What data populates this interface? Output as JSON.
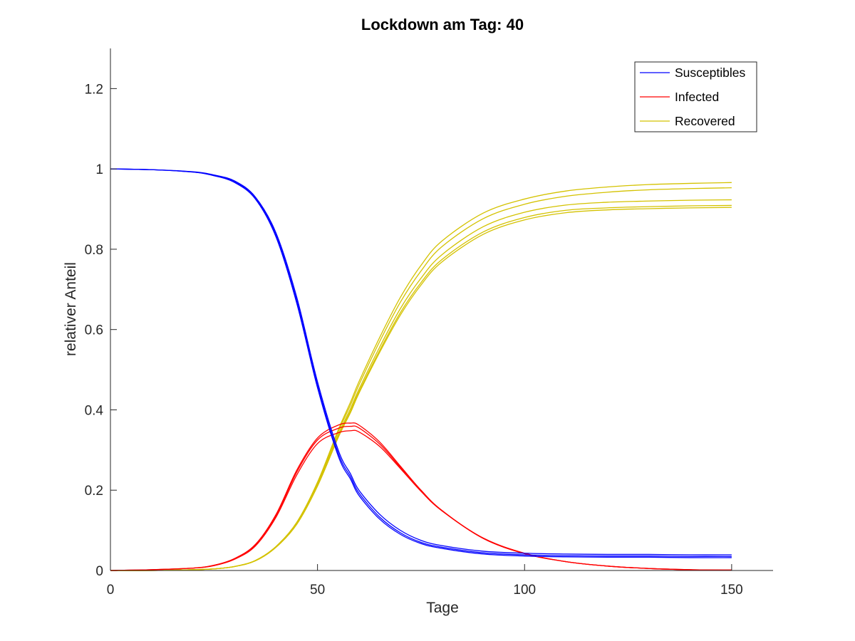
{
  "chart_data": {
    "type": "line",
    "title": "Lockdown am Tag: 40",
    "xlabel": "Tage",
    "ylabel": "relativer Anteil",
    "xlim": [
      0,
      160
    ],
    "ylim": [
      0,
      1.3
    ],
    "xticks": [
      0,
      50,
      100,
      150
    ],
    "yticks": [
      0,
      0.2,
      0.4,
      0.6,
      0.8,
      1,
      1.2
    ],
    "xtick_labels": [
      "0",
      "50",
      "100",
      "150"
    ],
    "ytick_labels": [
      "0",
      "0.2",
      "0.4",
      "0.6",
      "0.8",
      "1",
      "1.2"
    ],
    "grid": false,
    "legend_position": "top-right",
    "legend": [
      {
        "label": "Susceptibles",
        "color": "#0000ff"
      },
      {
        "label": "Infected",
        "color": "#ff0000"
      },
      {
        "label": "Recovered",
        "color": "#d4c200"
      }
    ],
    "x": [
      0,
      10,
      20,
      25,
      30,
      35,
      40,
      45,
      50,
      55,
      58,
      60,
      65,
      70,
      75,
      80,
      90,
      100,
      110,
      120,
      130,
      140,
      150
    ],
    "series": [
      {
        "group": "Susceptibles",
        "color": "#0000ff",
        "values": [
          1.0,
          0.998,
          0.993,
          0.985,
          0.97,
          0.93,
          0.84,
          0.68,
          0.47,
          0.3,
          0.24,
          0.2,
          0.14,
          0.1,
          0.075,
          0.062,
          0.048,
          0.043,
          0.041,
          0.04,
          0.04,
          0.039,
          0.039
        ]
      },
      {
        "group": "Susceptibles",
        "color": "#0000ff",
        "values": [
          1.0,
          0.998,
          0.992,
          0.984,
          0.968,
          0.928,
          0.835,
          0.672,
          0.462,
          0.292,
          0.233,
          0.193,
          0.133,
          0.094,
          0.07,
          0.058,
          0.044,
          0.039,
          0.037,
          0.036,
          0.036,
          0.035,
          0.035
        ]
      },
      {
        "group": "Susceptibles",
        "color": "#0000ff",
        "values": [
          1.0,
          0.998,
          0.992,
          0.983,
          0.966,
          0.925,
          0.83,
          0.665,
          0.455,
          0.285,
          0.227,
          0.187,
          0.128,
          0.09,
          0.067,
          0.055,
          0.041,
          0.036,
          0.034,
          0.033,
          0.033,
          0.032,
          0.032
        ]
      },
      {
        "group": "Infected",
        "color": "#ff0000",
        "values": [
          0.0,
          0.002,
          0.006,
          0.013,
          0.03,
          0.065,
          0.14,
          0.25,
          0.33,
          0.362,
          0.367,
          0.362,
          0.32,
          0.26,
          0.2,
          0.15,
          0.08,
          0.042,
          0.022,
          0.011,
          0.005,
          0.002,
          0.001
        ]
      },
      {
        "group": "Infected",
        "color": "#ff0000",
        "values": [
          0.0,
          0.002,
          0.006,
          0.013,
          0.029,
          0.063,
          0.137,
          0.245,
          0.325,
          0.354,
          0.359,
          0.355,
          0.315,
          0.257,
          0.198,
          0.149,
          0.08,
          0.042,
          0.022,
          0.011,
          0.005,
          0.002,
          0.001
        ]
      },
      {
        "group": "Infected",
        "color": "#ff0000",
        "values": [
          0.0,
          0.002,
          0.006,
          0.012,
          0.028,
          0.061,
          0.133,
          0.238,
          0.316,
          0.343,
          0.348,
          0.345,
          0.309,
          0.254,
          0.197,
          0.149,
          0.081,
          0.043,
          0.022,
          0.011,
          0.005,
          0.002,
          0.001
        ]
      },
      {
        "group": "Recovered",
        "color": "#d4c200",
        "values": [
          0.0,
          0.0,
          0.002,
          0.004,
          0.01,
          0.025,
          0.06,
          0.12,
          0.22,
          0.35,
          0.42,
          0.47,
          0.58,
          0.68,
          0.76,
          0.82,
          0.89,
          0.925,
          0.945,
          0.955,
          0.961,
          0.964,
          0.966
        ]
      },
      {
        "group": "Recovered",
        "color": "#d4c200",
        "values": [
          0.0,
          0.0,
          0.002,
          0.004,
          0.01,
          0.025,
          0.06,
          0.12,
          0.218,
          0.345,
          0.413,
          0.462,
          0.57,
          0.668,
          0.746,
          0.806,
          0.876,
          0.912,
          0.932,
          0.942,
          0.948,
          0.951,
          0.953
        ]
      },
      {
        "group": "Recovered",
        "color": "#d4c200",
        "values": [
          0.0,
          0.0,
          0.002,
          0.004,
          0.01,
          0.025,
          0.059,
          0.118,
          0.214,
          0.338,
          0.404,
          0.451,
          0.556,
          0.652,
          0.728,
          0.786,
          0.856,
          0.892,
          0.91,
          0.917,
          0.92,
          0.922,
          0.923
        ]
      },
      {
        "group": "Recovered",
        "color": "#d4c200",
        "values": [
          0.0,
          0.0,
          0.002,
          0.004,
          0.01,
          0.024,
          0.058,
          0.116,
          0.212,
          0.334,
          0.398,
          0.445,
          0.548,
          0.642,
          0.717,
          0.774,
          0.843,
          0.879,
          0.897,
          0.903,
          0.906,
          0.908,
          0.909
        ]
      },
      {
        "group": "Recovered",
        "color": "#d4c200",
        "values": [
          0.0,
          0.0,
          0.002,
          0.004,
          0.01,
          0.024,
          0.058,
          0.115,
          0.21,
          0.331,
          0.394,
          0.441,
          0.543,
          0.636,
          0.711,
          0.768,
          0.837,
          0.873,
          0.891,
          0.898,
          0.901,
          0.903,
          0.904
        ]
      }
    ]
  }
}
